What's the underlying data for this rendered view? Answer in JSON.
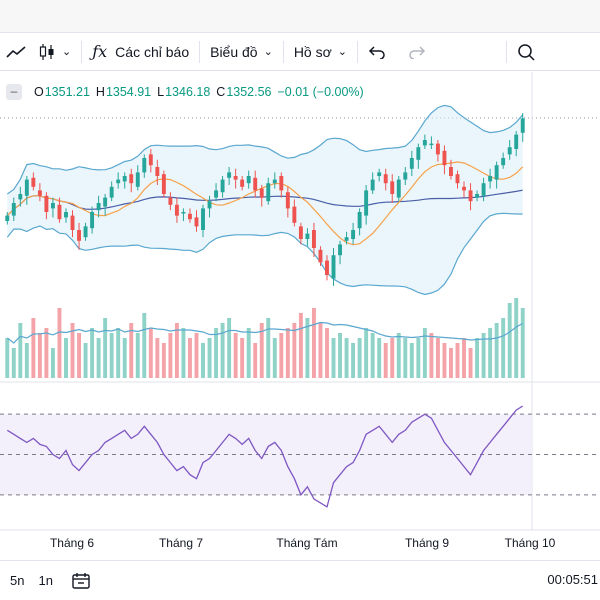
{
  "toolbar": {
    "indicators_label": "Các chỉ báo",
    "chart_type_label": "Biểu đồ",
    "profile_label": "Hồ sơ"
  },
  "legend": {
    "open_key": "O",
    "open": "1351.21",
    "high_key": "H",
    "high": "1354.91",
    "low_key": "L",
    "low": "1346.18",
    "close_key": "C",
    "close": "1352.56",
    "change": "−0.01 (−0.00%)"
  },
  "xaxis": {
    "labels": [
      "Tháng 6",
      "Tháng 7",
      "Tháng Tám",
      "Tháng 9",
      "Tháng 10"
    ]
  },
  "bottom": {
    "range_5d": "5n",
    "range_1d": "1n",
    "clock": "00:05:51"
  },
  "colors": {
    "up": "#26a69a",
    "down": "#ef5350",
    "vol_up": "#8fd3c8",
    "vol_down": "#f4a3a8",
    "bb_band": "#5aa7cf",
    "ma_orange": "#f7a14a",
    "ma_blue": "#4a5ea8",
    "rsi_line": "#7e57c2",
    "rsi_bg": "#f3effb"
  },
  "chart_data": {
    "type": "candlestick",
    "x_ticks": [
      "Tháng 6",
      "Tháng 7",
      "Tháng Tám",
      "Tháng 9",
      "Tháng 10"
    ],
    "close": [
      1298,
      1305,
      1310,
      1318,
      1314,
      1309,
      1300,
      1305,
      1296,
      1300,
      1290,
      1284,
      1292,
      1300,
      1305,
      1308,
      1314,
      1318,
      1320,
      1316,
      1322,
      1330,
      1326,
      1320,
      1310,
      1304,
      1298,
      1300,
      1296,
      1292,
      1302,
      1306,
      1312,
      1318,
      1322,
      1318,
      1314,
      1320,
      1312,
      1308,
      1316,
      1318,
      1312,
      1302,
      1294,
      1285,
      1288,
      1280,
      1272,
      1265,
      1276,
      1282,
      1286,
      1290,
      1300,
      1312,
      1318,
      1322,
      1316,
      1310,
      1318,
      1322,
      1330,
      1336,
      1340,
      1338,
      1332,
      1326,
      1320,
      1316,
      1312,
      1306,
      1310,
      1316,
      1320,
      1326,
      1330,
      1336,
      1343,
      1352
    ],
    "volume": [
      40,
      30,
      55,
      35,
      60,
      45,
      50,
      30,
      70,
      40,
      55,
      45,
      35,
      50,
      40,
      60,
      45,
      50,
      40,
      55,
      45,
      65,
      50,
      40,
      35,
      45,
      55,
      50,
      40,
      45,
      35,
      40,
      50,
      55,
      60,
      45,
      40,
      50,
      35,
      55,
      60,
      40,
      45,
      50,
      55,
      65,
      60,
      70,
      55,
      50,
      40,
      45,
      40,
      35,
      40,
      50,
      45,
      40,
      35,
      40,
      45,
      40,
      35,
      40,
      50,
      45,
      40,
      35,
      30,
      35,
      40,
      30,
      40,
      45,
      50,
      55,
      60,
      75,
      80,
      70
    ],
    "rsi": [
      62,
      60,
      58,
      56,
      58,
      55,
      54,
      50,
      48,
      52,
      45,
      42,
      46,
      50,
      52,
      56,
      58,
      60,
      62,
      58,
      60,
      64,
      60,
      56,
      50,
      46,
      42,
      44,
      40,
      38,
      46,
      48,
      52,
      56,
      60,
      58,
      55,
      58,
      52,
      48,
      54,
      56,
      52,
      44,
      38,
      30,
      34,
      28,
      26,
      24,
      36,
      40,
      44,
      46,
      52,
      60,
      62,
      64,
      60,
      56,
      60,
      62,
      66,
      68,
      70,
      68,
      62,
      56,
      52,
      48,
      44,
      40,
      46,
      52,
      56,
      60,
      64,
      68,
      72,
      74
    ],
    "rsi_levels": [
      70,
      50,
      30
    ]
  }
}
